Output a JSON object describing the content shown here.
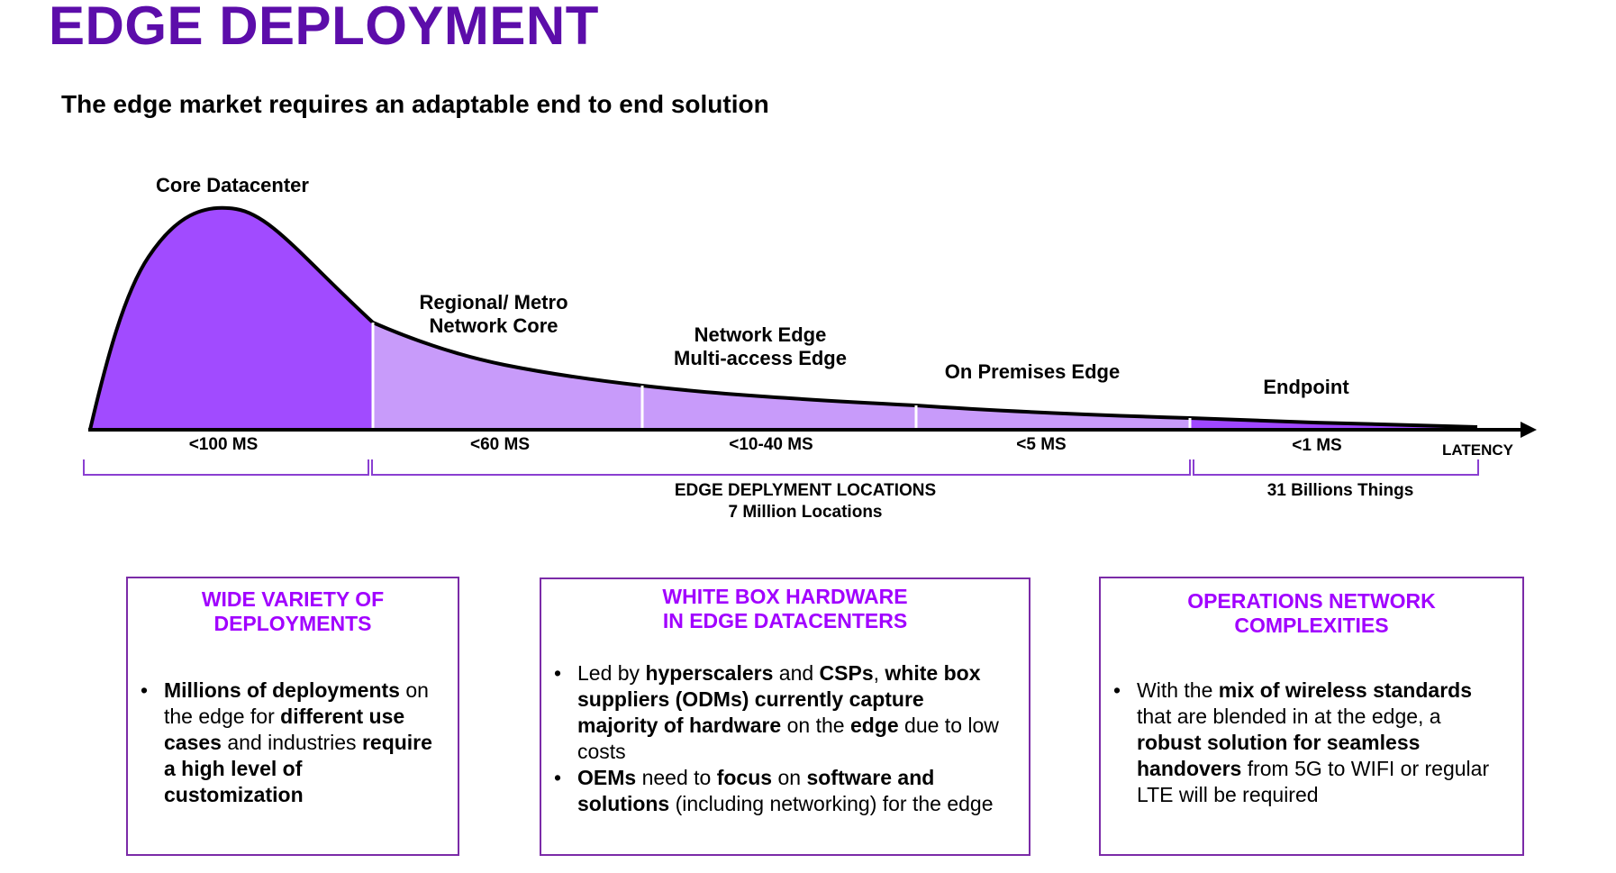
{
  "header": {
    "title": "EDGE DEPLOYMENT",
    "subtitle": "The edge market requires an adaptable end to end solution"
  },
  "diagram": {
    "tiers": [
      {
        "label_lines": [
          "Core Datacenter"
        ],
        "latency": "<100 MS"
      },
      {
        "label_lines": [
          "Regional/ Metro",
          "Network Core"
        ],
        "latency": "<60 MS"
      },
      {
        "label_lines": [
          "Network Edge",
          "Multi-access Edge"
        ],
        "latency": "<10-40 MS"
      },
      {
        "label_lines": [
          "On Premises Edge"
        ],
        "latency": "<5 MS"
      },
      {
        "label_lines": [
          "Endpoint"
        ],
        "latency": "<1 MS"
      }
    ],
    "axis_label": "LATENCY",
    "groups": [
      {
        "lines": [
          "EDGE DEPLYMENT LOCATIONS",
          "7 Million Locations"
        ]
      },
      {
        "lines": [
          "31 Billions Things"
        ]
      }
    ],
    "colors": {
      "core_fill": "#A14BFF",
      "edge_fill": "#C89BFA",
      "endpoint_fill": "#9F47FF",
      "bracket": "#8A3FD1",
      "curve": "#000000"
    }
  },
  "cards": [
    {
      "title_lines": [
        "WIDE VARIETY OF",
        "DEPLOYMENTS"
      ],
      "bullets": [
        [
          {
            "t": "Millions of deployments",
            "b": true
          },
          {
            "t": " on the edge for ",
            "b": false
          },
          {
            "t": "different use cases",
            "b": true
          },
          {
            "t": " and industries ",
            "b": false
          },
          {
            "t": "require a high level of customization",
            "b": true
          }
        ]
      ]
    },
    {
      "title_lines": [
        "WHITE BOX HARDWARE",
        "IN EDGE DATACENTERS"
      ],
      "bullets": [
        [
          {
            "t": "Led by ",
            "b": false
          },
          {
            "t": "hyperscalers",
            "b": true
          },
          {
            "t": " and ",
            "b": false
          },
          {
            "t": "CSPs",
            "b": true
          },
          {
            "t": ", ",
            "b": false
          },
          {
            "t": "white box suppliers (ODMs) currently capture majority of hardware",
            "b": true
          },
          {
            "t": " on the ",
            "b": false
          },
          {
            "t": "edge",
            "b": true
          },
          {
            "t": " due to low costs",
            "b": false
          }
        ],
        [
          {
            "t": "OEMs",
            "b": true
          },
          {
            "t": " need to ",
            "b": false
          },
          {
            "t": "focus",
            "b": true
          },
          {
            "t": " on ",
            "b": false
          },
          {
            "t": "software and solutions",
            "b": true
          },
          {
            "t": " (including networking) for the edge",
            "b": false
          }
        ]
      ]
    },
    {
      "title_lines": [
        "OPERATIONS NETWORK",
        "COMPLEXITIES"
      ],
      "bullets": [
        [
          {
            "t": "With the ",
            "b": false
          },
          {
            "t": "mix of wireless standards",
            "b": true
          },
          {
            "t": " that are blended in at the edge, a ",
            "b": false
          },
          {
            "t": "robust solution for seamless handovers",
            "b": true
          },
          {
            "t": " from 5G to WIFI or regular LTE will be required",
            "b": false
          }
        ]
      ]
    }
  ]
}
